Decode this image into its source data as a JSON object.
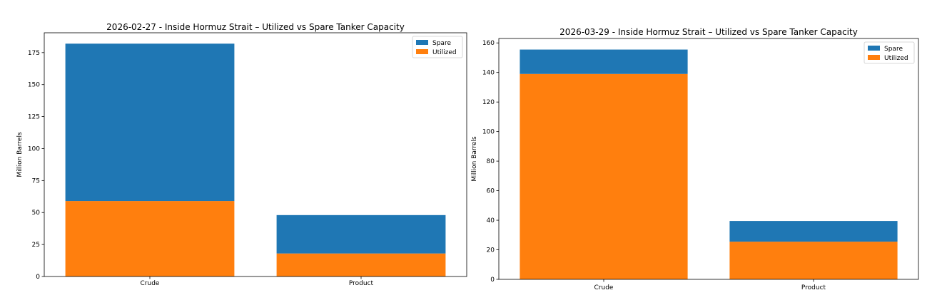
{
  "colors": {
    "spare": "#1f77b4",
    "utilized": "#ff7f0e"
  },
  "chart_data": [
    {
      "type": "bar",
      "stacked": true,
      "title": "2026-02-27 - Inside Hormuz Strait – Utilized vs Spare Tanker Capacity",
      "xlabel": "",
      "ylabel": "Million Barrels",
      "categories": [
        "Crude",
        "Product"
      ],
      "series": [
        {
          "name": "Utilized",
          "values": [
            59,
            18
          ]
        },
        {
          "name": "Spare",
          "values": [
            123,
            30
          ]
        }
      ],
      "ylim": [
        0,
        190.5
      ],
      "yticks": [
        0,
        25,
        50,
        75,
        100,
        125,
        150,
        175
      ],
      "legend": "top-right",
      "grid": false
    },
    {
      "type": "bar",
      "stacked": true,
      "title": "2026-03-29 - Inside Hormuz Strait – Utilized vs Spare Tanker Capacity",
      "xlabel": "",
      "ylabel": "Million Barrels",
      "categories": [
        "Crude",
        "Product"
      ],
      "series": [
        {
          "name": "Utilized",
          "values": [
            139,
            25.5
          ]
        },
        {
          "name": "Spare",
          "values": [
            16.5,
            14
          ]
        }
      ],
      "ylim": [
        0,
        163
      ],
      "yticks": [
        0,
        20,
        40,
        60,
        80,
        100,
        120,
        140,
        160
      ],
      "legend": "top-right",
      "grid": false
    }
  ]
}
